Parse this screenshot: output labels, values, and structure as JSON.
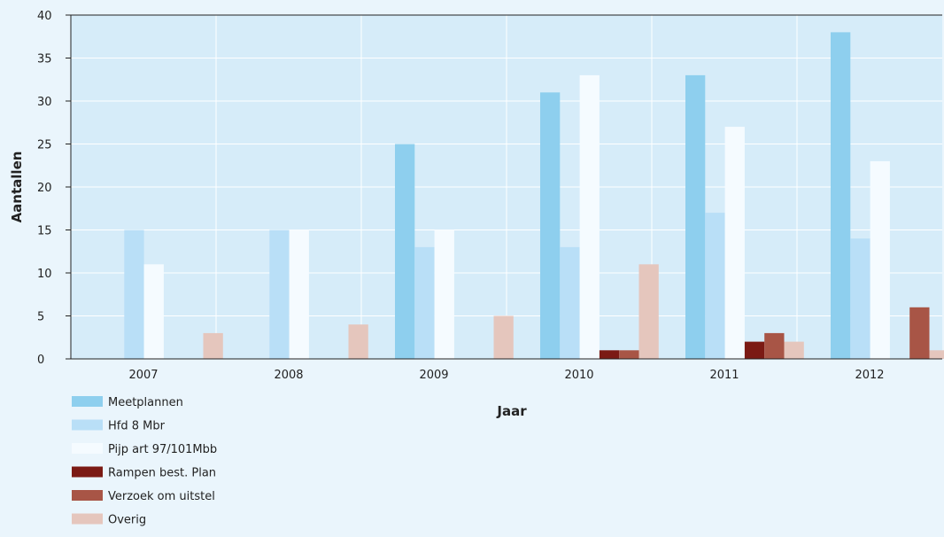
{
  "chart_data": {
    "type": "bar",
    "xlabel": "Jaar",
    "ylabel": "Aantallen",
    "ylim": [
      0,
      40
    ],
    "yticks": [
      0,
      5,
      10,
      15,
      20,
      25,
      30,
      35,
      40
    ],
    "grid": true,
    "legend_position": "bottom-left",
    "categories": [
      "2007",
      "2008",
      "2009",
      "2010",
      "2011",
      "2012"
    ],
    "series": [
      {
        "name": "Meetplannen",
        "color": "#8ecfee",
        "values": [
          0,
          0,
          25,
          31,
          33,
          38
        ]
      },
      {
        "name": "Hfd 8 Mbr",
        "color": "#b9dff7",
        "values": [
          15,
          15,
          13,
          13,
          17,
          14
        ]
      },
      {
        "name": "Pijp art 97/101Mbb",
        "color": "#f5fbff",
        "values": [
          11,
          15,
          15,
          33,
          27,
          23
        ]
      },
      {
        "name": "Rampen best. Plan",
        "color": "#7b1a14",
        "values": [
          0,
          0,
          0,
          1,
          2,
          0
        ]
      },
      {
        "name": "Verzoek om uitstel",
        "color": "#a85546",
        "values": [
          0,
          0,
          0,
          1,
          3,
          6
        ]
      },
      {
        "name": "Overig",
        "color": "#e5c6bd",
        "values": [
          3,
          4,
          5,
          11,
          2,
          1
        ]
      }
    ]
  }
}
